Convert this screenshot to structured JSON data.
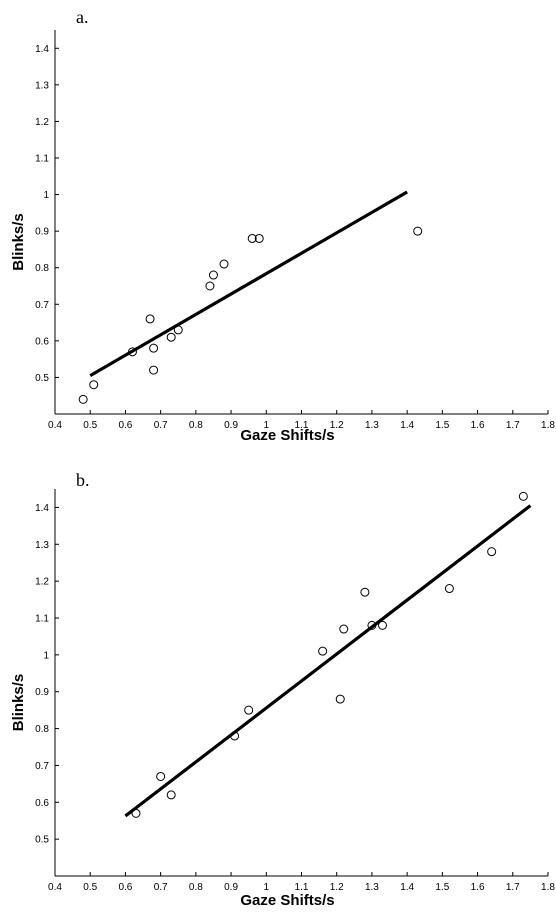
{
  "chart_data": [
    {
      "type": "scatter",
      "panel_label": "a.",
      "xlabel": "Gaze Shifts/s",
      "ylabel": "Blinks/s",
      "xlim": [
        0.4,
        1.8
      ],
      "ylim": [
        0.4,
        1.45
      ],
      "xticks": [
        "0.4",
        "0.5",
        "0.6",
        "0.7",
        "0.8",
        "0.9",
        "1",
        "1.1",
        "1.2",
        "1.3",
        "1.4",
        "1.5",
        "1.6",
        "1.7",
        "1.8"
      ],
      "yticks": [
        "0.5",
        "0.6",
        "0.7",
        "0.8",
        "0.9",
        "1",
        "1.1",
        "1.2",
        "1.3",
        "1.4"
      ],
      "grid": false,
      "points": [
        {
          "x": 0.48,
          "y": 0.44
        },
        {
          "x": 0.51,
          "y": 0.48
        },
        {
          "x": 0.62,
          "y": 0.57
        },
        {
          "x": 0.67,
          "y": 0.66
        },
        {
          "x": 0.68,
          "y": 0.58
        },
        {
          "x": 0.68,
          "y": 0.52
        },
        {
          "x": 0.73,
          "y": 0.61
        },
        {
          "x": 0.75,
          "y": 0.63
        },
        {
          "x": 0.84,
          "y": 0.75
        },
        {
          "x": 0.85,
          "y": 0.78
        },
        {
          "x": 0.88,
          "y": 0.81
        },
        {
          "x": 0.96,
          "y": 0.88
        },
        {
          "x": 0.98,
          "y": 0.88
        },
        {
          "x": 1.43,
          "y": 0.9
        }
      ],
      "fit_line": {
        "x": [
          0.5,
          1.4
        ],
        "y": [
          0.505,
          1.007
        ]
      }
    },
    {
      "type": "scatter",
      "panel_label": "b.",
      "xlabel": "Gaze Shifts/s",
      "ylabel": "Blinks/s",
      "xlim": [
        0.4,
        1.8
      ],
      "ylim": [
        0.4,
        1.45
      ],
      "xticks": [
        "0.4",
        "0.5",
        "0.6",
        "0.7",
        "0.8",
        "0.9",
        "1",
        "1.1",
        "1.2",
        "1.3",
        "1.4",
        "1.5",
        "1.6",
        "1.7",
        "1.8"
      ],
      "yticks": [
        "0.5",
        "0.6",
        "0.7",
        "0.8",
        "0.9",
        "1",
        "1.1",
        "1.2",
        "1.3",
        "1.4"
      ],
      "grid": false,
      "points": [
        {
          "x": 0.63,
          "y": 0.57
        },
        {
          "x": 0.7,
          "y": 0.67
        },
        {
          "x": 0.73,
          "y": 0.62
        },
        {
          "x": 0.91,
          "y": 0.78
        },
        {
          "x": 0.95,
          "y": 0.85
        },
        {
          "x": 1.16,
          "y": 1.01
        },
        {
          "x": 1.21,
          "y": 0.88
        },
        {
          "x": 1.22,
          "y": 1.07
        },
        {
          "x": 1.28,
          "y": 1.17
        },
        {
          "x": 1.3,
          "y": 1.08
        },
        {
          "x": 1.33,
          "y": 1.08
        },
        {
          "x": 1.52,
          "y": 1.18
        },
        {
          "x": 1.64,
          "y": 1.28
        },
        {
          "x": 1.73,
          "y": 1.43
        }
      ],
      "fit_line": {
        "x": [
          0.6,
          1.75
        ],
        "y": [
          0.563,
          1.405
        ]
      }
    }
  ]
}
